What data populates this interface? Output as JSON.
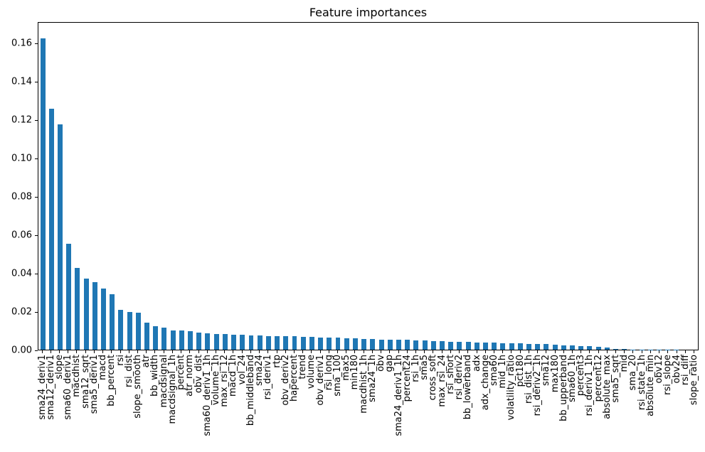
{
  "chart_data": {
    "type": "bar",
    "title": "Feature importances",
    "xlabel": "",
    "ylabel": "",
    "ylim": [
      0,
      0.1712
    ],
    "grid": false,
    "legend": "none",
    "bar_color": "#1f77b4",
    "axis_color": "#000000",
    "background_color": "#ffffff",
    "yticks": [
      {
        "value": 0.0,
        "label": "0.00"
      },
      {
        "value": 0.02,
        "label": "0.02"
      },
      {
        "value": 0.04,
        "label": "0.04"
      },
      {
        "value": 0.06,
        "label": "0.06"
      },
      {
        "value": 0.08,
        "label": "0.08"
      },
      {
        "value": 0.1,
        "label": "0.10"
      },
      {
        "value": 0.12,
        "label": "0.12"
      },
      {
        "value": 0.14,
        "label": "0.14"
      },
      {
        "value": 0.16,
        "label": "0.16"
      }
    ],
    "categories": [
      "sma24_deriv1",
      "sma12_deriv1",
      "slope",
      "sma60_deriv1",
      "macdhist",
      "sma12_sqrt",
      "sma5_deriv1",
      "macd",
      "bb_percent",
      "rsi",
      "rsi_dist",
      "slope_smooth",
      "atr",
      "bb_width",
      "macdsignal",
      "macdsignal_1h",
      "percent",
      "atr_norm",
      "obv_dist",
      "sma60_deriv1_1h",
      "volume_1h",
      "max_rsi_12",
      "macd_1h",
      "vol_24",
      "bb_middleband",
      "sma24",
      "rsi_deriv1",
      "rtp",
      "obv_deriv2",
      "hapercent",
      "trend",
      "volume",
      "obv_deriv1",
      "rsi_long",
      "sma_100",
      "max5",
      "min180",
      "macdhist_1h",
      "sma24_1h",
      "obv",
      "gap",
      "sma24_deriv1_1h",
      "percent24",
      "rsi_1h",
      "sma5",
      "cross_soft",
      "max_rsi_24",
      "rsi_short",
      "rsi_deriv2",
      "bb_lowerband",
      "adx",
      "adx_change",
      "sma60",
      "mid_1h",
      "volatility_ratio",
      "pct180",
      "rsi_dist_1h",
      "rsi_deriv2_1h",
      "sma12",
      "max180",
      "bb_upperband",
      "sma60_1h",
      "percent3",
      "rsi_deriv1_1h",
      "percent12",
      "absolute_max",
      "sma5_sqrt",
      "mid",
      "sma_20",
      "rsi_state_1h",
      "absolute_min",
      "obv12",
      "rsi_slope",
      "obv24",
      "rsi_diff",
      "slope_ratio"
    ],
    "values": [
      0.163,
      0.126,
      0.118,
      0.0555,
      0.0427,
      0.0373,
      0.0353,
      0.0321,
      0.0291,
      0.0207,
      0.0197,
      0.0194,
      0.0142,
      0.0124,
      0.0114,
      0.0102,
      0.0099,
      0.0095,
      0.009,
      0.0086,
      0.0083,
      0.0081,
      0.0079,
      0.0077,
      0.0075,
      0.0073,
      0.0072,
      0.0071,
      0.007,
      0.0069,
      0.0068,
      0.0067,
      0.0065,
      0.0064,
      0.0062,
      0.006,
      0.0058,
      0.0057,
      0.0056,
      0.0054,
      0.0053,
      0.0052,
      0.0051,
      0.0049,
      0.0047,
      0.0045,
      0.0044,
      0.0042,
      0.0041,
      0.004,
      0.0038,
      0.0037,
      0.0036,
      0.0035,
      0.0033,
      0.0032,
      0.0031,
      0.0029,
      0.0028,
      0.0026,
      0.0024,
      0.0022,
      0.002,
      0.0017,
      0.0014,
      0.0011,
      0.0004,
      0.0002,
      0.0001,
      8e-05,
      6e-05,
      5e-05,
      4e-05,
      3e-05,
      2e-05,
      1e-05
    ]
  }
}
